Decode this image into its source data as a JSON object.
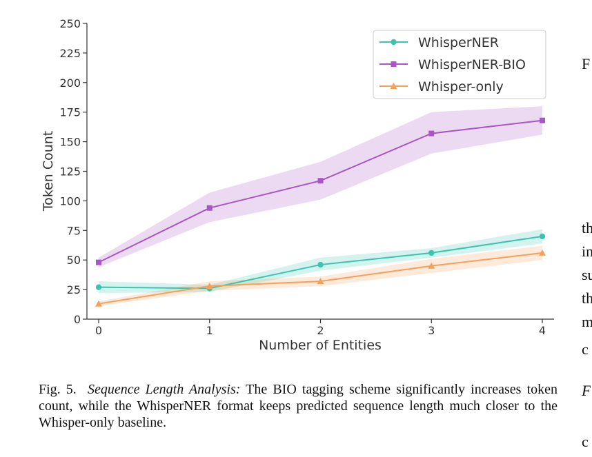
{
  "chart_data": {
    "type": "line",
    "xlabel": "Number of Entities",
    "ylabel": "Token Count",
    "x": [
      0,
      1,
      2,
      3,
      4
    ],
    "xticks": [
      "0",
      "1",
      "2",
      "3",
      "4"
    ],
    "ylim": [
      0,
      250
    ],
    "yticks": [
      "0",
      "25",
      "50",
      "75",
      "100",
      "125",
      "150",
      "175",
      "200",
      "225",
      "250"
    ],
    "grid": false,
    "legend_position": "top-right",
    "series": [
      {
        "name": "WhisperNER",
        "color": "#3cc4b0",
        "marker": "circle",
        "values": [
          27,
          26,
          46,
          56,
          70
        ],
        "lower": [
          22,
          23,
          41,
          52,
          64
        ],
        "upper": [
          32,
          29,
          52,
          60,
          76
        ]
      },
      {
        "name": "WhisperNER-BIO",
        "color": "#a855c5",
        "marker": "square",
        "values": [
          48,
          94,
          117,
          157,
          168
        ],
        "lower": [
          44,
          82,
          101,
          140,
          156
        ],
        "upper": [
          52,
          107,
          133,
          175,
          180
        ]
      },
      {
        "name": "Whisper-only",
        "color": "#f5a05a",
        "marker": "triangle",
        "values": [
          13,
          28,
          32,
          45,
          56
        ],
        "lower": [
          11,
          24,
          28,
          39,
          50
        ],
        "upper": [
          15,
          32,
          36,
          51,
          62
        ]
      }
    ]
  },
  "caption": {
    "prefix": "Fig. 5.",
    "italic": "Sequence Length Analysis:",
    "text": "The BIO tagging scheme significantly increases token count, while the WhisperNER format keeps predicted sequence length much closer to the Whisper-only baseline."
  },
  "side_text": [
    "F",
    "th",
    "in",
    "su",
    "th",
    "m",
    "c",
    "F",
    "c"
  ]
}
